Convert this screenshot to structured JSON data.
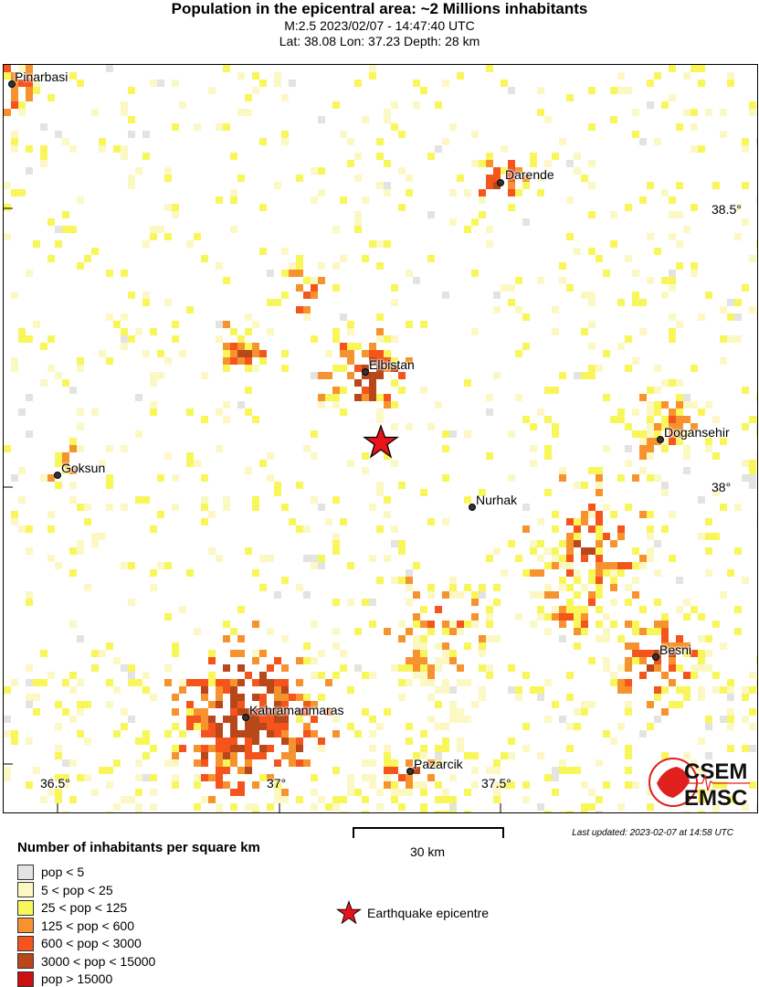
{
  "header": {
    "title": "Population in the epicentral area: ~2 Millions inhabitants",
    "event": "M:2.5 2023/02/07 - 14:47:40 UTC",
    "location": "Lat: 38.08 Lon: 37.23 Depth: 28 km"
  },
  "map": {
    "lon_ticks": [
      "36.5°",
      "37°",
      "37.5°"
    ],
    "lat_ticks": [
      "38.5°",
      "38°"
    ],
    "epicentre": {
      "lat": 38.08,
      "lon": 37.23,
      "color": "#e8141b"
    },
    "cities": [
      {
        "name": "Pinarbasi"
      },
      {
        "name": "Darende"
      },
      {
        "name": "Elbistan"
      },
      {
        "name": "Dogansehir"
      },
      {
        "name": "Goksun"
      },
      {
        "name": "Nurhak"
      },
      {
        "name": "Besni"
      },
      {
        "name": "Kahramanmaras"
      },
      {
        "name": "Pazarcik"
      }
    ],
    "logo": {
      "top": "CSEM",
      "bottom": "EMSC",
      "color": "#e0201c"
    }
  },
  "scale_bar": {
    "label": "30 km"
  },
  "last_updated": "Last updated: 2023-02-07 at 14:58 UTC",
  "legend": {
    "title": "Number of inhabitants per square km",
    "items": [
      {
        "label": "pop < 5",
        "color": "#e3e4e1"
      },
      {
        "label": "5 < pop < 25",
        "color": "#fbf8c4"
      },
      {
        "label": "25 < pop < 125",
        "color": "#f9f65a"
      },
      {
        "label": "125 < pop < 600",
        "color": "#f7932f"
      },
      {
        "label": "600 < pop < 3000",
        "color": "#f5541c"
      },
      {
        "label": "3000 < pop < 15000",
        "color": "#b84719"
      },
      {
        "label": "pop > 15000",
        "color": "#cc0f10"
      }
    ],
    "epicentre_label": "Earthquake epicentre"
  }
}
